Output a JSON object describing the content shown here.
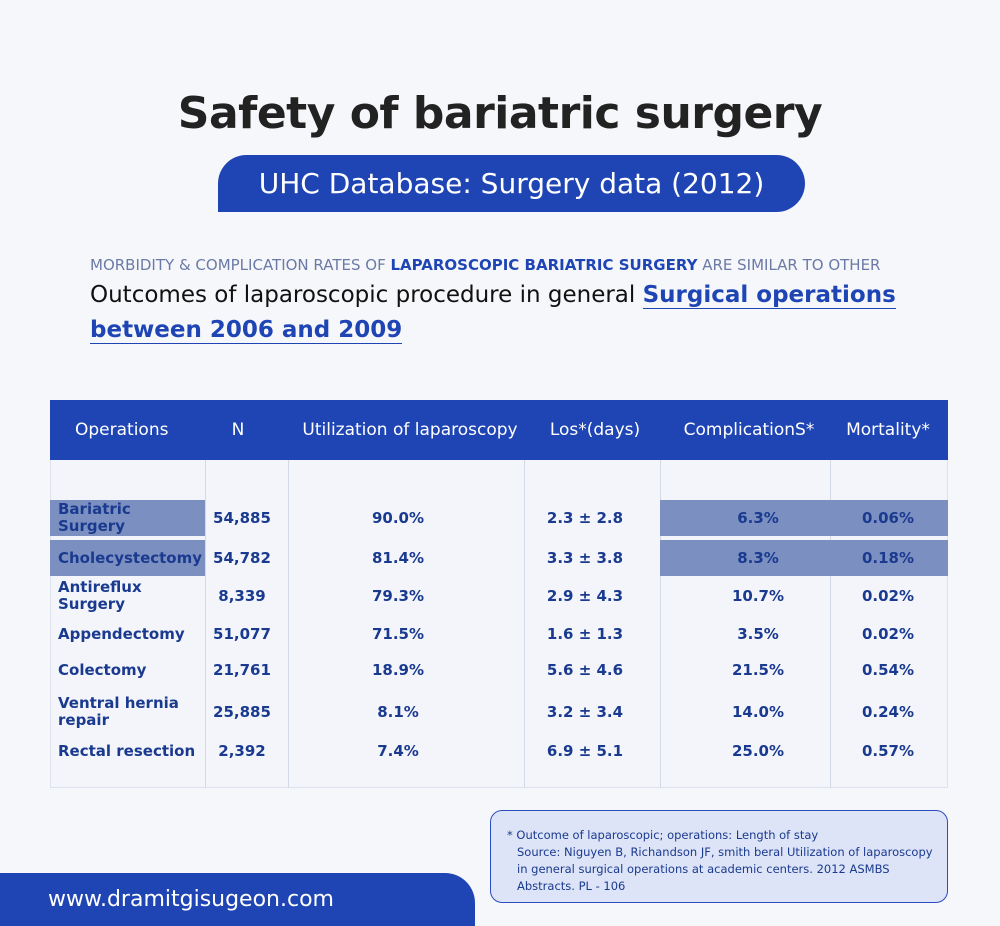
{
  "title": "Safety of bariatric surgery",
  "subtitle": "UHC Database: Surgery data (2012)",
  "intro": {
    "line1": [
      "MORBIDITY & COMPLICATION RATES OF ",
      "LAPAROSCOPIC BARIATRIC SURGERY",
      " ARE SIMILAR TO OTHER"
    ],
    "line2": [
      "Outcomes of laparoscopic procedure in general ",
      "Surgical operations between 2006 and 2009"
    ]
  },
  "table": {
    "headers": [
      "Operations",
      "N",
      "Utilization of laparoscopy",
      "Los*(days)",
      "ComplicationS*",
      "Mortality*"
    ],
    "rows": [
      [
        "Bariatric Surgery",
        "54,885",
        "90.0%",
        "2.3 ± 2.8",
        "6.3%",
        "0.06%"
      ],
      [
        "Cholecystectomy",
        "54,782",
        "81.4%",
        "3.3 ± 3.8",
        "8.3%",
        "0.18%"
      ],
      [
        "Antireflux Surgery",
        "8,339",
        "79.3%",
        "2.9 ± 4.3",
        "10.7%",
        "0.02%"
      ],
      [
        "Appendectomy",
        "51,077",
        "71.5%",
        "1.6 ± 1.3",
        "3.5%",
        "0.02%"
      ],
      [
        "Colectomy",
        "21,761",
        "18.9%",
        "5.6 ± 4.6",
        "21.5%",
        "0.54%"
      ],
      [
        "Ventral hernia repair",
        "25,885",
        "8.1%",
        "3.2 ± 3.4",
        "14.0%",
        "0.24%"
      ],
      [
        "Rectal resection",
        "2,392",
        "7.4%",
        "6.9 ± 5.1",
        "25.0%",
        "0.57%"
      ]
    ]
  },
  "footnote": {
    "lines": [
      "* Outcome of laparoscopic; operations: Length of stay",
      "Source: Niguyen B, Richandson JF, smith beral Utilization of laparoscopy in general surgical operations at academic centers. 2012 ASMBS Abstracts. PL - 106"
    ]
  },
  "website": "www.dramitgisugeon.com"
}
